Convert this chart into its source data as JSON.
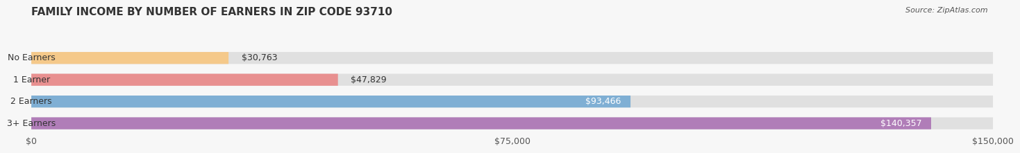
{
  "title": "FAMILY INCOME BY NUMBER OF EARNERS IN ZIP CODE 93710",
  "source": "Source: ZipAtlas.com",
  "categories": [
    "No Earners",
    "1 Earner",
    "2 Earners",
    "3+ Earners"
  ],
  "values": [
    30763,
    47829,
    93466,
    140357
  ],
  "bar_colors": [
    "#f5c98a",
    "#e89090",
    "#7fafd4",
    "#b07db8"
  ],
  "bar_bg_color": "#e0e0e0",
  "value_labels": [
    "$30,763",
    "$47,829",
    "$93,466",
    "$140,357"
  ],
  "xlim": [
    0,
    150000
  ],
  "xticks": [
    0,
    75000,
    150000
  ],
  "xtick_labels": [
    "$0",
    "$75,000",
    "$150,000"
  ],
  "background_color": "#f7f7f7",
  "title_fontsize": 11,
  "label_fontsize": 9,
  "value_fontsize": 9,
  "bar_height": 0.55,
  "fig_width": 14.06,
  "fig_height": 2.33
}
